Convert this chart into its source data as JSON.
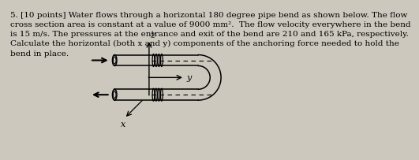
{
  "title_text": "5. [10 points] Water flows through a horizontal 180 degree pipe bend as shown below. The flow\ncross section area is constant at a value of 9000 mm².  The flow velocity everywhere in the bend\nis 15 m/s. The pressures at the entrance and exit of the bend are 210 and 165 kPa, respectively.\nCalculate the horizontal (both x and y) components of the anchoring force needed to hold the\nbend in place.",
  "bg_color": "#cdc8be",
  "text_color": "#000000",
  "text_fontsize": 7.5
}
